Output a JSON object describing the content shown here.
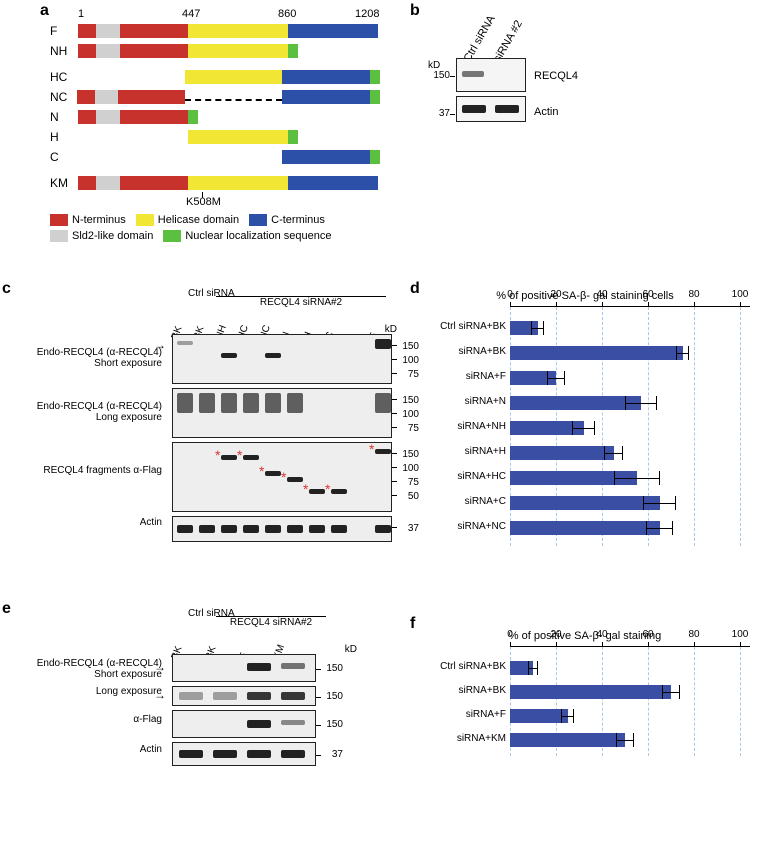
{
  "labels": {
    "a": "a",
    "b": "b",
    "c": "c",
    "d": "d",
    "e": "e",
    "f": "f"
  },
  "colors": {
    "nterm": "#c8322c",
    "sld2": "#d0d0d0",
    "helicase": "#f2e635",
    "cterm": "#2c4fa8",
    "nls": "#5bbf3f",
    "bar_fill": "#3a4fa3",
    "grid": "#a8c8e8"
  },
  "panelA": {
    "scale": {
      "start": "1",
      "mid1": "447",
      "mid2": "860",
      "end": "1208",
      "km": "K508M"
    },
    "constructs": [
      "F",
      "NH",
      "HC",
      "NC",
      "N",
      "H",
      "C",
      "KM"
    ],
    "legend": [
      {
        "color": "#c8322c",
        "label": "N-terminus"
      },
      {
        "color": "#f2e635",
        "label": "Helicase domain"
      },
      {
        "color": "#2c4fa8",
        "label": "C-terminus"
      },
      {
        "color": "#d0d0d0",
        "label": "Sld2-like domain"
      },
      {
        "color": "#5bbf3f",
        "label": "Nuclear localization sequence"
      }
    ]
  },
  "panelB": {
    "lanes": [
      "Ctrl siRNA",
      "siRNA #2"
    ],
    "mw": [
      "150",
      "37"
    ],
    "unit": "kD",
    "rows": [
      "RECQL4",
      "Actin"
    ]
  },
  "panelC": {
    "top_group": "RECQL4 siRNA#2",
    "lanes": [
      "BK",
      "BK",
      "NH",
      "HC",
      "NC",
      "N",
      "H",
      "C",
      "",
      "F"
    ],
    "pre_lane": "Ctrl siRNA",
    "mw_unit": "kD",
    "mw_sets": [
      [
        "150",
        "100",
        "75"
      ],
      [
        "150",
        "100",
        "75"
      ],
      [
        "150",
        "100",
        "75",
        "50"
      ],
      [
        "37"
      ]
    ],
    "row_labels": [
      "Endo-RECQL4 (α-RECQL4) Short exposure",
      "Endo-RECQL4 (α-RECQL4) Long exposure",
      "RECQL4 fragments α-Flag",
      "Actin"
    ]
  },
  "panelD": {
    "title": "% of positive SA-β- gal staining cells",
    "xmax": 100,
    "xticks": [
      0,
      20,
      40,
      60,
      80,
      100
    ],
    "bars": [
      {
        "label": "Ctrl siRNA+BK",
        "val": 12,
        "err": 3
      },
      {
        "label": "siRNA+BK",
        "val": 75,
        "err": 3
      },
      {
        "label": "siRNA+F",
        "val": 20,
        "err": 4
      },
      {
        "label": "siRNA+N",
        "val": 57,
        "err": 7
      },
      {
        "label": "siRNA+NH",
        "val": 32,
        "err": 5
      },
      {
        "label": "siRNA+H",
        "val": 45,
        "err": 4
      },
      {
        "label": "siRNA+HC",
        "val": 55,
        "err": 10
      },
      {
        "label": "siRNA+C",
        "val": 65,
        "err": 7
      },
      {
        "label": "siRNA+NC",
        "val": 65,
        "err": 6
      }
    ]
  },
  "panelE": {
    "top_group": "RECQL4 siRNA#2",
    "lanes": [
      "BK",
      "BK",
      "F",
      "KM"
    ],
    "pre_lane": "Ctrl siRNA",
    "mw": [
      "150",
      "150",
      "150",
      "37"
    ],
    "unit": "kD",
    "row_labels": [
      "Endo-RECQL4 (α-RECQL4) Short exposure",
      "Long exposure",
      "α-Flag",
      "Actin"
    ]
  },
  "panelF": {
    "title": "% of positive SA-β- gal staining",
    "xmax": 100,
    "xticks": [
      0,
      20,
      40,
      60,
      80,
      100
    ],
    "bars": [
      {
        "label": "Ctrl siRNA+BK",
        "val": 10,
        "err": 2
      },
      {
        "label": "siRNA+BK",
        "val": 70,
        "err": 4
      },
      {
        "label": "siRNA+F",
        "val": 25,
        "err": 3
      },
      {
        "label": "siRNA+KM",
        "val": 50,
        "err": 4
      }
    ]
  }
}
